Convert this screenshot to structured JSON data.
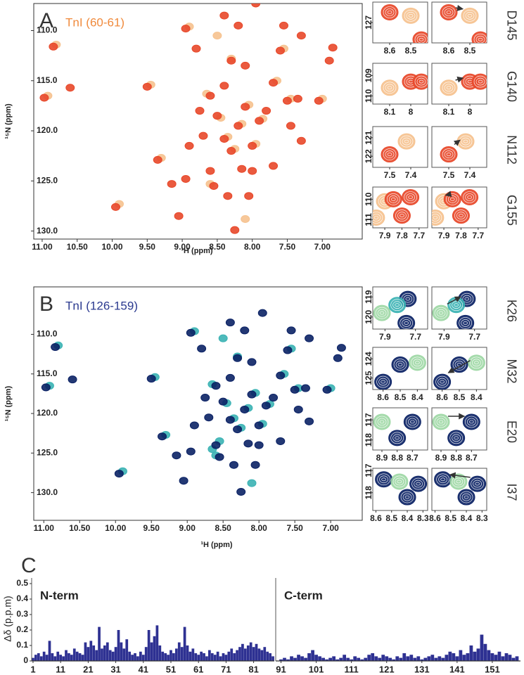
{
  "chart_data": [
    {
      "type": "spectrum",
      "panel": "A",
      "title": "TnI (60-61)",
      "title_color": "#f08a3c",
      "xlabel": "¹H (ppm)",
      "ylabel": "¹⁵N (ppm)",
      "xlim": [
        11.12,
        6.43
      ],
      "ylim": [
        107.3,
        130.8
      ],
      "xticks": [
        {
          "value": 11,
          "label": "11.00"
        },
        {
          "value": 10.5,
          "label": "10.50"
        },
        {
          "value": 10,
          "label": "10.00"
        },
        {
          "value": 9.5,
          "label": "9.50"
        },
        {
          "value": 9,
          "label": "9.00"
        },
        {
          "value": 8.5,
          "label": "8.50"
        },
        {
          "value": 8,
          "label": "8.00"
        },
        {
          "value": 7.5,
          "label": "7.50"
        },
        {
          "value": 7,
          "label": "7.00"
        }
      ],
      "yticks": [
        {
          "value": 110,
          "label": "110.0"
        },
        {
          "value": 115,
          "label": "115.0"
        },
        {
          "value": 120,
          "label": "120.0"
        },
        {
          "value": 125,
          "label": "125.0"
        },
        {
          "value": 130,
          "label": "130.0"
        }
      ],
      "series": [
        {
          "color": "#f6c28f",
          "x": [
            10.92,
            10.8,
            9.9,
            9.45,
            9.3,
            8.9,
            8.65,
            8.45,
            8.25,
            8.05,
            7.85,
            7.95,
            8.35,
            8.15,
            7.65,
            7.55,
            7.0,
            8.6,
            8.3,
            7.45,
            8.5,
            8.1
          ],
          "y": [
            116.5,
            111.4,
            127.3,
            115.4,
            122.7,
            109.6,
            116.3,
            118.7,
            121.8,
            117.4,
            118.8,
            121.3,
            120.6,
            119.3,
            115.0,
            111.8,
            116.8,
            125.3,
            112.8,
            116.8,
            110.5,
            128.8
          ]
        },
        {
          "color": "#e8482a",
          "x": [
            10.97,
            10.84,
            10.6,
            9.95,
            9.5,
            9.35,
            9.15,
            8.95,
            8.95,
            8.8,
            8.6,
            8.7,
            8.5,
            8.4,
            8.3,
            8.2,
            8.1,
            8.0,
            7.9,
            7.8,
            7.7,
            8.3,
            8.1,
            8.2,
            8.4,
            8.25,
            7.95,
            7.6,
            7.5,
            7.35,
            7.05,
            6.85,
            6.9,
            7.3,
            7.55,
            8.55,
            8.35,
            8.0,
            7.7,
            7.3,
            8.6,
            8.9,
            9.05,
            8.4,
            8.75,
            8.05,
            7.45,
            8.15
          ],
          "y": [
            116.7,
            111.6,
            115.7,
            127.6,
            115.6,
            122.9,
            125.3,
            124.8,
            109.8,
            111.8,
            116.5,
            120.5,
            118.5,
            120.8,
            122.0,
            119.5,
            117.6,
            121.5,
            119.0,
            118.0,
            115.2,
            113.0,
            113.5,
            109.5,
            108.5,
            129.9,
            107.3,
            112.0,
            117.0,
            116.8,
            117.0,
            111.7,
            113.0,
            110.5,
            109.5,
            125.5,
            126.5,
            124.0,
            123.5,
            121.0,
            124.0,
            121.5,
            128.5,
            115.5,
            118.0,
            126.5,
            119.5,
            123.8
          ]
        }
      ],
      "insets": [
        {
          "label": "D145",
          "xlim": [
            8.68,
            8.42
          ],
          "ylim": [
            126.4,
            127.6
          ],
          "xticks": [
            8.6,
            8.5
          ],
          "yticks": [
            127
          ],
          "peaks": [
            {
              "x": 8.6,
              "y": 126.7,
              "color": "#e8482a"
            },
            {
              "x": 8.5,
              "y": 126.8,
              "color": "#f6c28f"
            },
            {
              "x": 8.45,
              "y": 127.5,
              "color": "#e8482a"
            }
          ]
        },
        {
          "label": "G140",
          "xlim": [
            8.18,
            7.92
          ],
          "ylim": [
            108.4,
            110.4
          ],
          "xticks": [
            8.1,
            8.0
          ],
          "yticks": [
            109,
            110
          ],
          "peaks": [
            {
              "x": 8.1,
              "y": 109.6,
              "color": "#f6c28f"
            },
            {
              "x": 8.0,
              "y": 109.3,
              "color": "#e8482a"
            },
            {
              "x": 7.95,
              "y": 109.3,
              "color": "#e8482a"
            }
          ]
        },
        {
          "label": "N112",
          "xlim": [
            7.58,
            7.32
          ],
          "ylim": [
            120.4,
            122.6
          ],
          "xticks": [
            7.5,
            7.4
          ],
          "yticks": [
            121,
            122
          ],
          "peaks": [
            {
              "x": 7.5,
              "y": 121.9,
              "color": "#e8482a"
            },
            {
              "x": 7.42,
              "y": 121.2,
              "color": "#f6c28f"
            }
          ]
        },
        {
          "label": "G155",
          "xlim": [
            7.97,
            7.65
          ],
          "ylim": [
            109.4,
            111.4
          ],
          "xticks": [
            7.9,
            7.8,
            7.7
          ],
          "yticks": [
            110,
            111
          ],
          "peaks": [
            {
              "x": 7.9,
              "y": 110.1,
              "color": "#f6c28f"
            },
            {
              "x": 7.85,
              "y": 110.0,
              "color": "#e8482a"
            },
            {
              "x": 7.75,
              "y": 109.9,
              "color": "#e8482a"
            },
            {
              "x": 7.95,
              "y": 110.9,
              "color": "#f6c28f"
            },
            {
              "x": 7.8,
              "y": 110.8,
              "color": "#e8482a"
            }
          ]
        }
      ]
    },
    {
      "type": "spectrum",
      "panel": "B",
      "title": "TnI (126-159)",
      "title_color": "#2b3a8f",
      "xlabel": "¹H (ppm)",
      "ylabel": "¹⁵N (ppm)",
      "xlim": [
        11.14,
        6.56
      ],
      "ylim": [
        104,
        133.5
      ],
      "xticks": [
        {
          "value": 11,
          "label": "11.00"
        },
        {
          "value": 10.5,
          "label": "10.50"
        },
        {
          "value": 10,
          "label": "10.00"
        },
        {
          "value": 9.5,
          "label": "9.50"
        },
        {
          "value": 9,
          "label": "9.00"
        },
        {
          "value": 8.5,
          "label": "8.50"
        },
        {
          "value": 8,
          "label": "8.00"
        },
        {
          "value": 7.5,
          "label": "7.50"
        },
        {
          "value": 7,
          "label": "7.00"
        }
      ],
      "yticks": [
        {
          "value": 110,
          "label": "110.0"
        },
        {
          "value": 115,
          "label": "115.0"
        },
        {
          "value": 120,
          "label": "120.0"
        },
        {
          "value": 125,
          "label": "125.0"
        },
        {
          "value": 130,
          "label": "130.0"
        }
      ],
      "series": [
        {
          "color": "#3bb3b4",
          "x": [
            10.92,
            10.8,
            9.9,
            9.45,
            9.3,
            8.9,
            8.65,
            8.45,
            8.25,
            8.05,
            7.85,
            7.95,
            8.35,
            8.15,
            7.65,
            7.55,
            7.0,
            8.6,
            8.3,
            7.45,
            8.5,
            8.1,
            8.55,
            8.65
          ],
          "y": [
            116.5,
            111.4,
            127.3,
            115.4,
            122.7,
            109.6,
            116.3,
            118.7,
            121.8,
            117.4,
            118.8,
            121.3,
            120.6,
            119.3,
            115.0,
            111.8,
            116.8,
            125.3,
            112.8,
            116.8,
            110.5,
            128.8,
            123.5,
            124.5
          ]
        },
        {
          "color": "#0b2265",
          "x": [
            10.97,
            10.84,
            10.6,
            9.95,
            9.5,
            9.35,
            9.15,
            8.95,
            8.95,
            8.8,
            8.6,
            8.7,
            8.5,
            8.4,
            8.3,
            8.2,
            8.1,
            8.0,
            7.9,
            7.8,
            7.7,
            8.3,
            8.1,
            8.2,
            8.4,
            8.25,
            7.95,
            7.6,
            7.5,
            7.35,
            7.05,
            6.85,
            6.9,
            7.3,
            7.55,
            8.55,
            8.35,
            8.0,
            7.7,
            7.3,
            8.6,
            8.9,
            9.05,
            8.4,
            8.75,
            8.05,
            7.45,
            8.15
          ],
          "y": [
            116.7,
            111.6,
            115.7,
            127.6,
            115.6,
            122.9,
            125.3,
            124.8,
            109.8,
            111.8,
            116.5,
            120.5,
            118.5,
            120.8,
            122.0,
            119.5,
            117.6,
            121.5,
            119.0,
            118.0,
            115.2,
            113.0,
            113.5,
            109.5,
            108.5,
            129.9,
            107.3,
            112.0,
            117.0,
            116.8,
            117.0,
            111.7,
            113.0,
            110.5,
            109.5,
            125.5,
            126.5,
            124.0,
            123.5,
            121.0,
            124.0,
            121.5,
            128.5,
            115.5,
            118.0,
            126.5,
            119.5,
            123.8
          ]
        }
      ],
      "insets": [
        {
          "label": "K26",
          "xlim": [
            7.98,
            7.62
          ],
          "ylim": [
            118.5,
            120.6
          ],
          "xticks": [
            7.9,
            7.7
          ],
          "yticks": [
            119,
            120
          ],
          "peaks": [
            {
              "x": 7.92,
              "y": 119.8,
              "color": "#9ed8a5"
            },
            {
              "x": 7.75,
              "y": 119.1,
              "color": "#0b2265"
            },
            {
              "x": 7.82,
              "y": 119.4,
              "color": "#3bb3b4"
            },
            {
              "x": 7.76,
              "y": 120.3,
              "color": "#0b2265"
            }
          ]
        },
        {
          "label": "M32",
          "xlim": [
            8.66,
            8.34
          ],
          "ylim": [
            123.4,
            125.6
          ],
          "xticks": [
            8.6,
            8.5,
            8.4
          ],
          "yticks": [
            124,
            125
          ],
          "peaks": [
            {
              "x": 8.4,
              "y": 124.2,
              "color": "#9ed8a5"
            },
            {
              "x": 8.6,
              "y": 125.2,
              "color": "#0b2265"
            },
            {
              "x": 8.5,
              "y": 124.3,
              "color": "#0b2265"
            }
          ]
        },
        {
          "label": "E20",
          "xlim": [
            8.96,
            8.6
          ],
          "ylim": [
            116.4,
            118.5
          ],
          "xticks": [
            8.9,
            8.8,
            8.7
          ],
          "yticks": [
            117,
            118
          ],
          "peaks": [
            {
              "x": 8.9,
              "y": 117.1,
              "color": "#9ed8a5"
            },
            {
              "x": 8.7,
              "y": 117.1,
              "color": "#0b2265"
            },
            {
              "x": 8.8,
              "y": 117.9,
              "color": "#0b2265"
            }
          ]
        },
        {
          "label": "I37",
          "xlim": [
            8.62,
            8.27
          ],
          "ylim": [
            116.9,
            118.8
          ],
          "xticks": [
            8.6,
            8.5,
            8.4,
            8.3
          ],
          "yticks": [
            117,
            118
          ],
          "peaks": [
            {
              "x": 8.33,
              "y": 117.6,
              "color": "#0b2265"
            },
            {
              "x": 8.55,
              "y": 117.4,
              "color": "#0b2265"
            },
            {
              "x": 8.45,
              "y": 117.5,
              "color": "#9ed8a5"
            },
            {
              "x": 8.4,
              "y": 118.2,
              "color": "#0b2265"
            }
          ]
        }
      ]
    },
    {
      "type": "bar",
      "panel": "C",
      "title": "N-term",
      "ylabel": "Δδ (p.p.m)",
      "color": "#2e3192",
      "xlim": [
        0.5,
        88.5
      ],
      "ylim": [
        0,
        0.5
      ],
      "yticks": [
        0,
        0.1,
        0.2,
        0.3,
        0.4,
        0.5
      ],
      "xticks": [
        1,
        11,
        21,
        31,
        41,
        51,
        61,
        71,
        81
      ],
      "x": [
        1,
        2,
        3,
        4,
        5,
        6,
        7,
        8,
        9,
        10,
        11,
        12,
        13,
        14,
        15,
        16,
        17,
        18,
        19,
        20,
        21,
        22,
        23,
        24,
        25,
        26,
        27,
        28,
        29,
        30,
        31,
        32,
        33,
        34,
        35,
        36,
        37,
        38,
        39,
        40,
        41,
        42,
        43,
        44,
        45,
        46,
        47,
        48,
        49,
        50,
        51,
        52,
        53,
        54,
        55,
        56,
        57,
        58,
        59,
        60,
        61,
        62,
        63,
        64,
        65,
        66,
        67,
        68,
        69,
        70,
        71,
        72,
        73,
        74,
        75,
        76,
        77,
        78,
        79,
        80,
        81,
        82,
        83,
        84,
        85,
        86,
        87,
        88
      ],
      "values": [
        0.02,
        0.04,
        0.05,
        0.03,
        0.06,
        0.04,
        0.13,
        0.05,
        0.03,
        0.06,
        0.04,
        0.03,
        0.07,
        0.05,
        0.04,
        0.08,
        0.06,
        0.05,
        0.04,
        0.12,
        0.09,
        0.13,
        0.1,
        0.07,
        0.22,
        0.08,
        0.1,
        0.12,
        0.07,
        0.06,
        0.09,
        0.2,
        0.12,
        0.08,
        0.14,
        0.06,
        0.04,
        0.05,
        0.03,
        0.06,
        0.04,
        0.09,
        0.2,
        0.12,
        0.16,
        0.23,
        0.1,
        0.06,
        0.05,
        0.04,
        0.07,
        0.05,
        0.08,
        0.12,
        0.09,
        0.22,
        0.1,
        0.06,
        0.08,
        0.05,
        0.04,
        0.06,
        0.05,
        0.03,
        0.07,
        0.05,
        0.04,
        0.06,
        0.03,
        0.05,
        0.04,
        0.06,
        0.08,
        0.05,
        0.07,
        0.09,
        0.11,
        0.08,
        0.1,
        0.12,
        0.09,
        0.11,
        0.08,
        0.07,
        0.09,
        0.06,
        0.05,
        0.03
      ]
    },
    {
      "type": "bar",
      "title": "C-term",
      "color": "#2e3192",
      "xlim": [
        89.5,
        159
      ],
      "ylim": [
        0,
        0.5
      ],
      "xticks": [
        91,
        101,
        111,
        121,
        131,
        141,
        151
      ],
      "x": [
        91,
        92,
        93,
        94,
        95,
        96,
        97,
        98,
        99,
        100,
        101,
        102,
        103,
        104,
        105,
        106,
        107,
        108,
        109,
        110,
        111,
        112,
        113,
        114,
        115,
        116,
        117,
        118,
        119,
        120,
        121,
        122,
        123,
        124,
        125,
        126,
        127,
        128,
        129,
        130,
        131,
        132,
        133,
        134,
        135,
        136,
        137,
        138,
        139,
        140,
        141,
        142,
        143,
        144,
        145,
        146,
        147,
        148,
        149,
        150,
        151,
        152,
        153,
        154,
        155,
        156,
        157,
        158
      ],
      "values": [
        0.01,
        0.02,
        0.01,
        0.03,
        0.02,
        0.04,
        0.03,
        0.02,
        0.05,
        0.07,
        0.04,
        0.03,
        0.02,
        0.01,
        0.02,
        0.03,
        0.01,
        0.02,
        0.04,
        0.02,
        0.01,
        0.03,
        0.02,
        0.01,
        0.02,
        0.04,
        0.05,
        0.03,
        0.02,
        0.04,
        0.03,
        0.02,
        0.01,
        0.03,
        0.02,
        0.05,
        0.03,
        0.04,
        0.02,
        0.03,
        0.01,
        0.02,
        0.03,
        0.04,
        0.02,
        0.03,
        0.02,
        0.04,
        0.06,
        0.05,
        0.03,
        0.07,
        0.04,
        0.05,
        0.1,
        0.06,
        0.08,
        0.17,
        0.11,
        0.07,
        0.05,
        0.04,
        0.06,
        0.03,
        0.05,
        0.04,
        0.02,
        0.03
      ]
    }
  ]
}
